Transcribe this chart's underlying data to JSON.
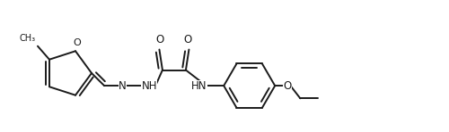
{
  "bg_color": "#ffffff",
  "line_color": "#1a1a1a",
  "line_width": 1.4,
  "font_size": 8.5,
  "figsize": [
    5.0,
    1.48
  ],
  "dpi": 100,
  "xlim": [
    0,
    5.0
  ],
  "ylim": [
    0,
    1.48
  ]
}
